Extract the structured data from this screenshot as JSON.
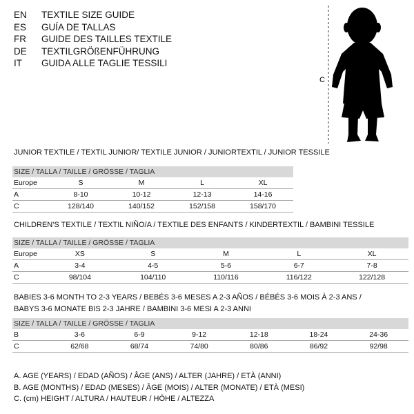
{
  "languages": [
    {
      "code": "EN",
      "text": "TEXTILE SIZE GUIDE"
    },
    {
      "code": "ES",
      "text": "GUÍA DE TALLAS"
    },
    {
      "code": "FR",
      "text": "GUIDE DES TAILLES TEXTILE"
    },
    {
      "code": "DE",
      "text": "TEXTILGRÖßENFÜHRUNG"
    },
    {
      "code": "IT",
      "text": "GUIDA ALLE TAGLIE TESSILI"
    }
  ],
  "figure": {
    "label": "C"
  },
  "tables": [
    {
      "title_lines": [
        "JUNIOR TEXTILE / TEXTIL JUNIOR/ TEXTILE JUNIOR / JUNIORTEXTIL / JUNIOR TESSILE"
      ],
      "header": "SIZE / TALLA / TAILLE / GRÖSSE / TAGLIA",
      "rows": [
        [
          "Europe",
          "S",
          "M",
          "L",
          "XL"
        ],
        [
          "A",
          "8-10",
          "10-12",
          "12-13",
          "14-16"
        ],
        [
          "C",
          "128/140",
          "140/152",
          "152/158",
          "158/170"
        ]
      ]
    },
    {
      "title_lines": [
        "CHILDREN'S TEXTILE / TEXTIL NIÑO/A / TEXTILE DES ENFANTS / KINDERTEXTIL / BAMBINI TESSILE"
      ],
      "header": "SIZE / TALLA / TAILLE / GRÖSSE / TAGLIA",
      "rows": [
        [
          "Europe",
          "XS",
          "S",
          "M",
          "L",
          "XL"
        ],
        [
          "A",
          "3-4",
          "4-5",
          "5-6",
          "6-7",
          "7-8"
        ],
        [
          "C",
          "98/104",
          "104/110",
          "110/116",
          "116/122",
          "122/128"
        ]
      ]
    },
    {
      "title_lines": [
        "BABIES 3-6 MONTH TO 2-3 YEARS / BEBÉS 3-6 MESES A 2-3 AÑOS / BÉBÉS 3-6 MOIS À 2-3 ANS /",
        "BABYS 3-6 MONATE BIS 2-3 JAHRE / BAMBINI 3-6 MESI A 2-3 ANNI"
      ],
      "header": "SIZE / TALLA / TAILLE / GRÖSSE / TAGLIA",
      "rows": [
        [
          "B",
          "3-6",
          "6-9",
          "9-12",
          "12-18",
          "18-24",
          "24-36"
        ],
        [
          "C",
          "62/68",
          "68/74",
          "74/80",
          "80/86",
          "86/92",
          "92/98"
        ]
      ]
    }
  ],
  "legend": [
    "A. AGE (YEARS) / EDAD (AÑOS) / ÂGE (ANS) / ALTER (JAHRE) / ETÀ (ANNI)",
    "B. AGE (MONTHS) / EDAD (MESES) / ÂGE (MOIS) / ALTER (MONATE) / ETÀ (MESI)",
    "C. (cm) HEIGHT / ALTURA / HAUTEUR / HÖHE / ALTEZZA"
  ]
}
